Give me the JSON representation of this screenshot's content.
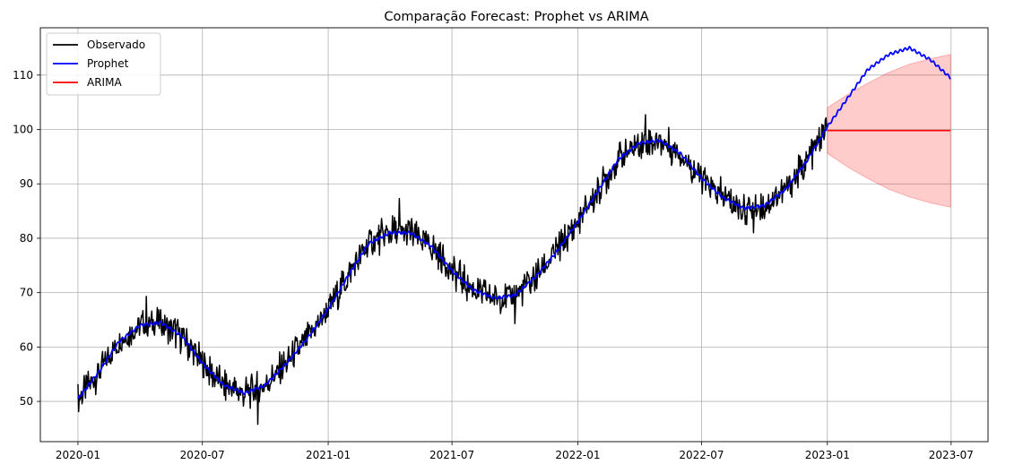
{
  "chart_data": {
    "type": "line",
    "title": "Comparação Forecast: Prophet vs ARIMA",
    "xlabel": "",
    "ylabel": "",
    "x_ticks": [
      "2020-01",
      "2020-07",
      "2021-01",
      "2021-07",
      "2022-01",
      "2022-07",
      "2023-01",
      "2023-07"
    ],
    "y_ticks": [
      50,
      60,
      70,
      80,
      90,
      100,
      110
    ],
    "xlim": [
      "2019-11-07",
      "2023-08-24"
    ],
    "ylim": [
      42.6,
      118.7
    ],
    "grid": true,
    "legend_position": "upper-left",
    "series": [
      {
        "name": "Observado",
        "color": "#000000",
        "x_range": [
          "2020-01-01",
          "2022-12-31"
        ],
        "trend_points": [
          [
            "2020-01-01",
            50.5
          ],
          [
            "2020-02-01",
            55.5
          ],
          [
            "2020-03-01",
            61
          ],
          [
            "2020-04-01",
            64
          ],
          [
            "2020-05-01",
            64.5
          ],
          [
            "2020-06-01",
            62
          ],
          [
            "2020-07-01",
            57
          ],
          [
            "2020-08-01",
            53
          ],
          [
            "2020-09-01",
            51.5
          ],
          [
            "2020-10-01",
            53
          ],
          [
            "2020-11-01",
            57
          ],
          [
            "2020-12-01",
            61.5
          ],
          [
            "2021-01-01",
            67
          ],
          [
            "2021-02-01",
            73.5
          ],
          [
            "2021-03-01",
            79
          ],
          [
            "2021-04-01",
            81
          ],
          [
            "2021-05-01",
            81
          ],
          [
            "2021-06-01",
            78.5
          ],
          [
            "2021-07-01",
            74
          ],
          [
            "2021-08-01",
            70.5
          ],
          [
            "2021-09-01",
            69
          ],
          [
            "2021-10-01",
            69.5
          ],
          [
            "2021-11-01",
            73
          ],
          [
            "2021-12-01",
            77.5
          ],
          [
            "2022-01-01",
            83
          ],
          [
            "2022-02-01",
            89
          ],
          [
            "2022-03-01",
            94.5
          ],
          [
            "2022-04-01",
            97.5
          ],
          [
            "2022-05-01",
            98
          ],
          [
            "2022-06-01",
            95.5
          ],
          [
            "2022-07-01",
            91
          ],
          [
            "2022-08-01",
            87.5
          ],
          [
            "2022-09-01",
            85.5
          ],
          [
            "2022-10-01",
            86
          ],
          [
            "2022-11-01",
            89
          ],
          [
            "2022-12-01",
            94
          ],
          [
            "2022-12-31",
            100.5
          ]
        ],
        "noise_amplitude": 2.8,
        "peak_points": [
          [
            "2020-04-10",
            69.3
          ],
          [
            "2021-04-15",
            87.3
          ],
          [
            "2022-04-10",
            102.7
          ],
          [
            "2020-09-20",
            45.8
          ],
          [
            "2022-09-15",
            81.0
          ],
          [
            "2021-10-01",
            64.3
          ]
        ]
      },
      {
        "name": "Prophet",
        "color": "#0000ff",
        "points": [
          [
            "2020-01-01",
            50.5
          ],
          [
            "2020-02-01",
            55.5
          ],
          [
            "2020-03-01",
            61
          ],
          [
            "2020-04-01",
            64
          ],
          [
            "2020-05-01",
            64.5
          ],
          [
            "2020-06-01",
            62
          ],
          [
            "2020-07-01",
            57
          ],
          [
            "2020-08-01",
            53
          ],
          [
            "2020-09-01",
            51.5
          ],
          [
            "2020-10-01",
            53
          ],
          [
            "2020-11-01",
            57
          ],
          [
            "2020-12-01",
            61.5
          ],
          [
            "2021-01-01",
            67
          ],
          [
            "2021-02-01",
            73.5
          ],
          [
            "2021-03-01",
            79
          ],
          [
            "2021-04-01",
            81
          ],
          [
            "2021-05-01",
            81
          ],
          [
            "2021-06-01",
            78.5
          ],
          [
            "2021-07-01",
            74
          ],
          [
            "2021-08-01",
            70.5
          ],
          [
            "2021-09-01",
            69
          ],
          [
            "2021-10-01",
            69.5
          ],
          [
            "2021-11-01",
            73
          ],
          [
            "2021-12-01",
            77.5
          ],
          [
            "2022-01-01",
            83
          ],
          [
            "2022-02-01",
            89
          ],
          [
            "2022-03-01",
            94.5
          ],
          [
            "2022-04-01",
            97.5
          ],
          [
            "2022-05-01",
            98
          ],
          [
            "2022-06-01",
            95.5
          ],
          [
            "2022-07-01",
            91
          ],
          [
            "2022-08-01",
            87.5
          ],
          [
            "2022-09-01",
            85.5
          ],
          [
            "2022-10-01",
            86
          ],
          [
            "2022-11-01",
            89
          ],
          [
            "2022-12-01",
            94
          ],
          [
            "2023-01-01",
            100.5
          ],
          [
            "2023-02-01",
            106
          ],
          [
            "2023-03-01",
            111
          ],
          [
            "2023-04-01",
            113.8
          ],
          [
            "2023-05-01",
            115
          ],
          [
            "2023-06-01",
            112.8
          ],
          [
            "2023-06-30",
            109.5
          ]
        ]
      },
      {
        "name": "ARIMA",
        "color": "#ff0000",
        "points": [
          [
            "2023-01-01",
            99.8
          ],
          [
            "2023-06-30",
            99.8
          ]
        ],
        "confidence_band": {
          "color": "#ff0000",
          "opacity": 0.2,
          "upper": [
            [
              "2023-01-01",
              104
            ],
            [
              "2023-02-01",
              106.5
            ],
            [
              "2023-03-01",
              108.5
            ],
            [
              "2023-04-01",
              110.5
            ],
            [
              "2023-05-01",
              112
            ],
            [
              "2023-06-01",
              113
            ],
            [
              "2023-06-30",
              113.8
            ]
          ],
          "lower": [
            [
              "2023-01-01",
              95.6
            ],
            [
              "2023-02-01",
              93
            ],
            [
              "2023-03-01",
              91
            ],
            [
              "2023-04-01",
              89
            ],
            [
              "2023-05-01",
              87.6
            ],
            [
              "2023-06-01",
              86.5
            ],
            [
              "2023-06-30",
              85.7
            ]
          ]
        }
      }
    ]
  }
}
